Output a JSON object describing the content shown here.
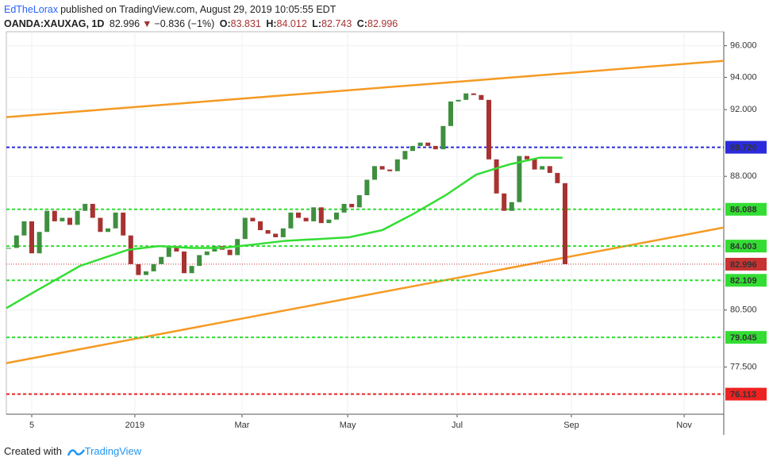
{
  "header": {
    "author": "EdTheLorax",
    "published": "published on TradingView.com, August 29, 2019 10:05:55 EDT"
  },
  "legend": {
    "symbol": "OANDA:XAUXAG, 1D",
    "last": "82.996",
    "arrow": "▼",
    "change": "−0.836 (−1%)",
    "open_label": "O:",
    "open": "83.831",
    "high_label": "H:",
    "high": "84.012",
    "low_label": "L:",
    "low": "82.743",
    "close_label": "C:",
    "close": "82.996"
  },
  "footer": {
    "created": "Created with",
    "brand": "TradingView"
  },
  "chart_data": {
    "type": "candlestick",
    "log_scale": true,
    "grid": true,
    "xlim": [
      -10,
      272.5
    ],
    "ylim": [
      75.1,
      96.9
    ],
    "xticks": [
      {
        "value": 0,
        "label": "5"
      },
      {
        "value": 40.6,
        "label": "2019"
      },
      {
        "value": 82.8,
        "label": "Mar"
      },
      {
        "value": 124.4,
        "label": "May"
      },
      {
        "value": 167.5,
        "label": "Jul"
      },
      {
        "value": 212.5,
        "label": "Sep"
      },
      {
        "value": 256.9,
        "label": "Nov"
      }
    ],
    "yticks": [
      {
        "value": 96,
        "label": "96.000"
      },
      {
        "value": 94,
        "label": "94.000"
      },
      {
        "value": 92,
        "label": "92.000"
      },
      {
        "value": 88,
        "label": "88.000"
      },
      {
        "value": 80.5,
        "label": "80.500"
      },
      {
        "value": 77.5,
        "label": "77.500"
      }
    ],
    "up_color": "#3f8f3f",
    "down_color": "#a83232",
    "x": [
      -9,
      -6,
      -3,
      0,
      3,
      6,
      9,
      12,
      15,
      18,
      21,
      24,
      27,
      30,
      33,
      36,
      39,
      42,
      45,
      48,
      51,
      54,
      57,
      60,
      63,
      66,
      69,
      72,
      75,
      78,
      81,
      84,
      87,
      90,
      93,
      96,
      99,
      102,
      105,
      108,
      111,
      114,
      117,
      120,
      123,
      126,
      129,
      132,
      135,
      138,
      141,
      144,
      147,
      150,
      153,
      156,
      159,
      162,
      165,
      168,
      171,
      174,
      177,
      180,
      183,
      186,
      189,
      192,
      195,
      198,
      201,
      204,
      207,
      210
    ],
    "values": [
      83.9,
      84.6,
      85.4,
      83.6,
      84.8,
      86.0,
      85.4,
      85.6,
      85.2,
      86.0,
      86.4,
      85.6,
      84.8,
      85.0,
      85.9,
      84.6,
      83.0,
      82.4,
      82.6,
      83.0,
      83.4,
      84.0,
      83.7,
      82.5,
      82.9,
      83.5,
      83.7,
      84.0,
      83.8,
      83.5,
      84.4,
      85.6,
      85.4,
      84.9,
      84.7,
      84.5,
      85.0,
      85.9,
      85.6,
      85.4,
      86.2,
      85.3,
      85.5,
      85.9,
      86.4,
      86.2,
      86.9,
      87.8,
      88.6,
      88.4,
      88.3,
      89.0,
      89.5,
      89.8,
      90.0,
      89.8,
      89.6,
      91.0,
      92.5,
      92.6,
      93.0,
      92.9,
      92.6,
      89.0,
      87.0,
      86.0,
      86.5,
      89.2,
      89.0,
      88.4,
      88.6,
      88.2,
      87.6,
      82.996
    ],
    "moving_average": {
      "color": "#33dd33",
      "x": [
        -10,
        0,
        19,
        38,
        50,
        63,
        75,
        88,
        100,
        113,
        125,
        138,
        150,
        163,
        175,
        188,
        200,
        209
      ],
      "values": [
        80.6,
        81.4,
        82.9,
        83.8,
        84.0,
        83.9,
        83.9,
        84.1,
        84.3,
        84.4,
        84.5,
        84.9,
        85.8,
        86.9,
        88.1,
        88.7,
        89.1,
        89.1
      ]
    },
    "trendlines": [
      {
        "color": "#f59a23",
        "x": [
          -10,
          272.5
        ],
        "values": [
          91.54,
          95.04
        ]
      },
      {
        "color": "#f59a23",
        "x": [
          -10,
          272.5
        ],
        "values": [
          77.7,
          85.05
        ]
      }
    ],
    "levels": [
      {
        "value": 89.72,
        "label": "89.720",
        "color": "#2b2bdd",
        "label_text_color": "#ffffff"
      },
      {
        "value": 86.088,
        "label": "86.088",
        "color": "#33dd33",
        "label_text_color": "#000000"
      },
      {
        "value": 84.003,
        "label": "84.003",
        "color": "#33dd33",
        "label_text_color": "#000000"
      },
      {
        "value": 82.109,
        "label": "82.109",
        "color": "#33dd33",
        "label_text_color": "#000000"
      },
      {
        "value": 79.045,
        "label": "79.045",
        "color": "#33dd33",
        "label_text_color": "#000000"
      },
      {
        "value": 76.113,
        "label": "76.113",
        "color": "#ee2222",
        "label_text_color": "#ffffff"
      }
    ],
    "price_line": {
      "value": 82.996,
      "label": "82.996",
      "color": "#c83232",
      "label_text_color": "#ffffff"
    }
  }
}
